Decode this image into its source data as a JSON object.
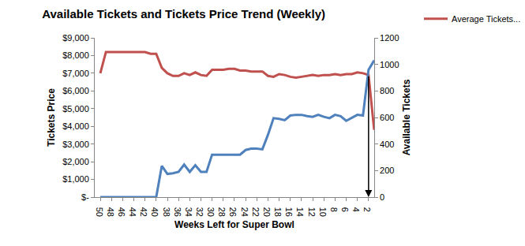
{
  "chart_data": {
    "type": "line",
    "title": "Available Tickets and Tickets Price Trend (Weekly)",
    "x_label": "Weeks Left for Super Bowl",
    "y_label": "Tickets Price",
    "y2_label": "Available Tickets",
    "x": [
      50,
      49,
      48,
      47,
      46,
      45,
      44,
      43,
      42,
      41,
      40,
      39,
      38,
      37,
      36,
      35,
      34,
      33,
      32,
      31,
      30,
      29,
      28,
      27,
      26,
      25,
      24,
      23,
      22,
      21,
      20,
      19,
      18,
      17,
      16,
      15,
      14,
      13,
      12,
      11,
      10,
      9,
      8,
      7,
      6,
      5,
      4,
      3,
      2,
      1
    ],
    "series": [
      {
        "name": "Average Tickets...",
        "color": "#c0504d",
        "values": [
          7000,
          8200,
          8200,
          8200,
          8200,
          8200,
          8200,
          8200,
          8200,
          8100,
          8100,
          7300,
          7000,
          6850,
          6850,
          7000,
          6900,
          7050,
          6900,
          6850,
          7200,
          7200,
          7200,
          7250,
          7250,
          7150,
          7150,
          7100,
          7100,
          7100,
          6850,
          6800,
          6950,
          6900,
          6800,
          6750,
          6800,
          6850,
          6900,
          6850,
          6900,
          6900,
          6950,
          6900,
          6950,
          6950,
          7050,
          7000,
          6900,
          3800
        ]
      },
      {
        "color": "#4f81bd",
        "axis": "y2",
        "values": [
          0,
          0,
          0,
          0,
          0,
          0,
          0,
          0,
          0,
          0,
          0,
          235,
          175,
          180,
          190,
          245,
          190,
          240,
          190,
          190,
          320,
          320,
          320,
          320,
          320,
          320,
          355,
          365,
          365,
          360,
          470,
          595,
          590,
          580,
          615,
          620,
          620,
          610,
          605,
          620,
          605,
          595,
          620,
          610,
          575,
          600,
          620,
          615,
          960,
          1030
        ]
      }
    ],
    "xlim": [
      51,
      1
    ],
    "xticks": [
      50,
      48,
      46,
      44,
      42,
      40,
      38,
      36,
      34,
      32,
      30,
      28,
      26,
      24,
      22,
      20,
      18,
      16,
      14,
      12,
      10,
      8,
      6,
      4,
      2
    ],
    "ylim": [
      0,
      9000
    ],
    "yticks": [
      {
        "value": 0,
        "label": "$-"
      },
      {
        "value": 1000,
        "label": "$1,000"
      },
      {
        "value": 2000,
        "label": "$2,000"
      },
      {
        "value": 3000,
        "label": "$3,000"
      },
      {
        "value": 4000,
        "label": "$4,000"
      },
      {
        "value": 5000,
        "label": "$5,000"
      },
      {
        "value": 6000,
        "label": "$6,000"
      },
      {
        "value": 7000,
        "label": "$7,000"
      },
      {
        "value": 8000,
        "label": "$8,000"
      },
      {
        "value": 9000,
        "label": "$9,000"
      }
    ],
    "y2lim": [
      0,
      1200
    ],
    "y2ticks": [
      0,
      200,
      400,
      600,
      800,
      1000,
      1200
    ],
    "grid": false,
    "legend": "top-right"
  }
}
